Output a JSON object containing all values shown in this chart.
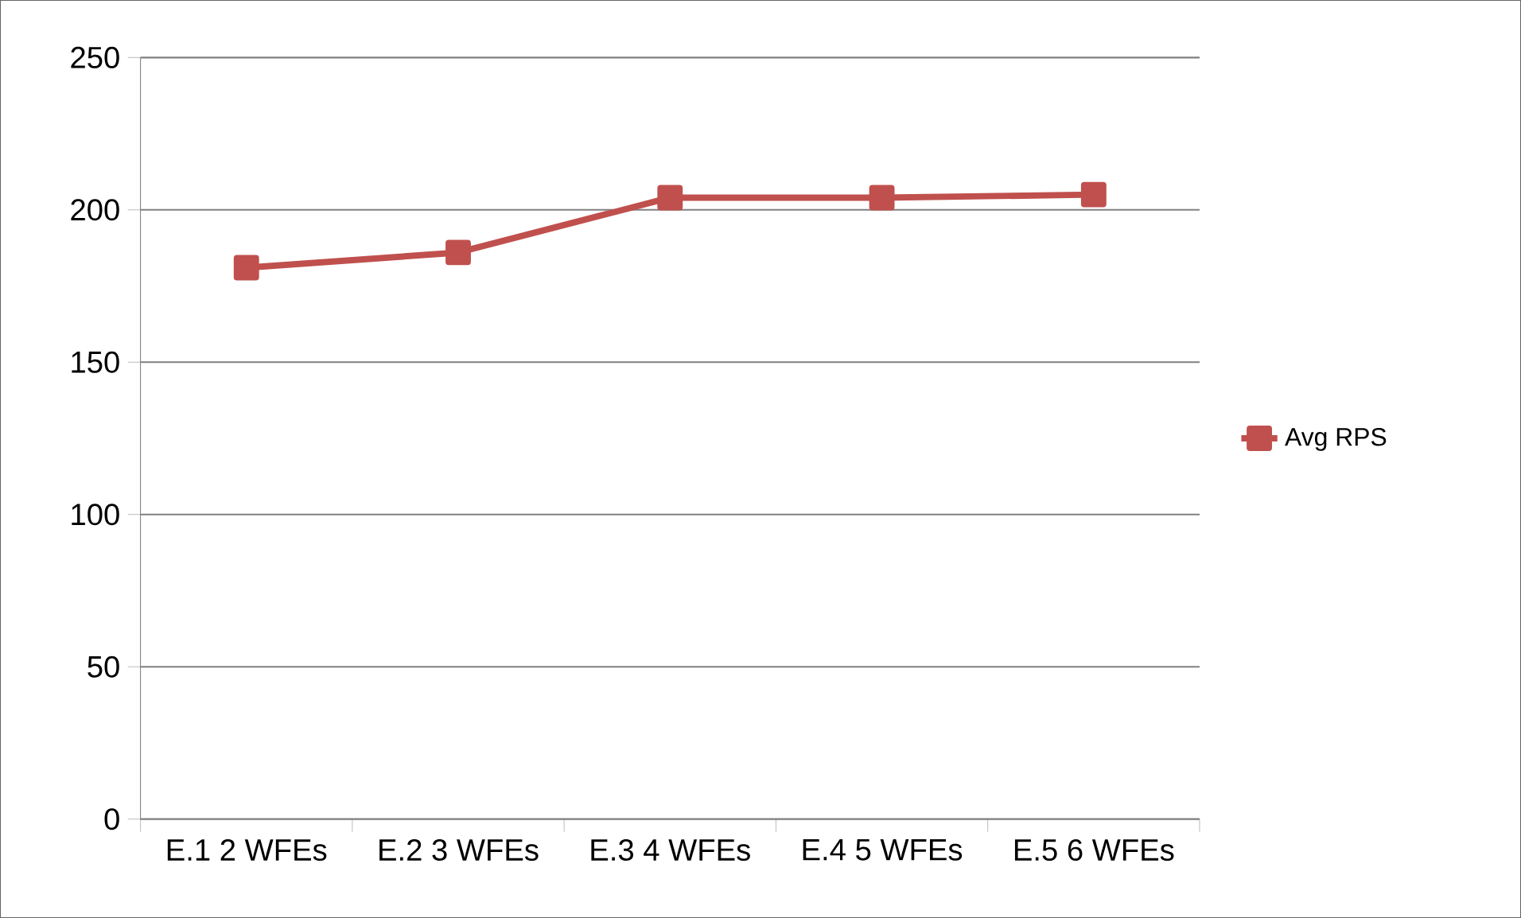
{
  "chart_data": {
    "type": "line",
    "categories": [
      "E.1 2 WFEs",
      "E.2 3 WFEs",
      "E.3 4 WFEs",
      "E.4 5 WFEs",
      "E.5 6 WFEs"
    ],
    "series": [
      {
        "name": "Avg RPS",
        "color": "#c0504d",
        "values": [
          181,
          186,
          204,
          204,
          205
        ]
      }
    ],
    "ylim": [
      0,
      250
    ],
    "yticks": [
      0,
      50,
      100,
      150,
      200,
      250
    ],
    "grid": "y",
    "legend": "right",
    "marker": "square",
    "line_style": "solid"
  }
}
